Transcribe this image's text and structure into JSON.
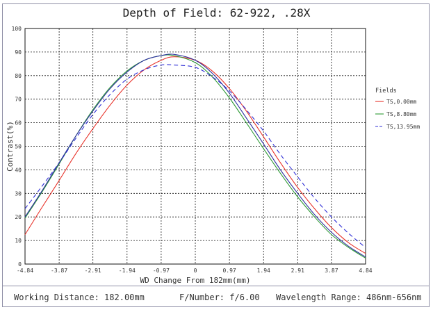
{
  "chart_data": {
    "type": "line",
    "title": "Depth of Field: 62-922, .28X",
    "xlabel": "WD Change From 182mm(mm)",
    "ylabel": "Contrast(%)",
    "xlim": [
      -4.84,
      4.84
    ],
    "ylim": [
      0,
      100
    ],
    "x_ticks": [
      "-4.84",
      "-3.87",
      "-2.91",
      "-1.94",
      "-0.97",
      "0",
      "0.97",
      "1.94",
      "2.91",
      "3.87",
      "4.84"
    ],
    "y_ticks": [
      "0",
      "10",
      "20",
      "30",
      "40",
      "50",
      "60",
      "70",
      "80",
      "90",
      "100"
    ],
    "grid": true,
    "legend_title": "Fields",
    "legend_position": "right",
    "series": [
      {
        "name": "TS,0.00mm",
        "color": "#e8332a",
        "dash": "solid",
        "x": [
          -4.84,
          -4.36,
          -3.87,
          -3.39,
          -2.91,
          -2.42,
          -1.94,
          -1.45,
          -0.97,
          -0.6,
          0,
          0.48,
          0.97,
          1.45,
          1.94,
          2.42,
          2.91,
          3.39,
          3.87,
          4.36,
          4.84
        ],
        "y": [
          12.5,
          24,
          35.5,
          47,
          57.5,
          67.5,
          76,
          82.5,
          86.5,
          88,
          86.5,
          82,
          74.5,
          65,
          54,
          43,
          32.5,
          23.5,
          15.5,
          9,
          4.5
        ]
      },
      {
        "name": "TS,8.80mm",
        "color": "#2e9a36",
        "dash": "solid",
        "x": [
          -4.84,
          -4.36,
          -3.87,
          -3.39,
          -2.91,
          -2.42,
          -1.94,
          -1.45,
          -0.97,
          -0.6,
          0,
          0.48,
          0.97,
          1.45,
          1.94,
          2.42,
          2.91,
          3.39,
          3.87,
          4.36,
          4.84
        ],
        "y": [
          19.5,
          30.5,
          42.5,
          54.5,
          65.5,
          75,
          82,
          86.5,
          88.5,
          88.5,
          85.5,
          79.5,
          70.5,
          60,
          49,
          38.5,
          28.5,
          20,
          12.5,
          7,
          2.5
        ]
      },
      {
        "name": "TS,13.95mm",
        "color": "#2f2fd6",
        "dash": "dashed",
        "x": [
          -4.84,
          -4.36,
          -3.87,
          -3.39,
          -2.91,
          -2.42,
          -1.94,
          -1.45,
          -0.97,
          -0.6,
          0,
          0.48,
          0.97,
          1.45,
          1.94,
          2.42,
          2.91,
          3.39,
          3.87,
          4.36,
          4.84
        ],
        "y": [
          23.5,
          33,
          43,
          53.5,
          63.5,
          72,
          78.5,
          82.5,
          84.5,
          84.5,
          83.5,
          79.5,
          73.5,
          65.5,
          56.5,
          46.5,
          37,
          28,
          20,
          13,
          7
        ]
      },
      {
        "name": "",
        "color": "#2a2f9e",
        "dash": "solid",
        "x": [
          -4.84,
          -4.36,
          -3.87,
          -3.39,
          -2.91,
          -2.42,
          -1.94,
          -1.45,
          -0.97,
          -0.6,
          0,
          0.48,
          0.97,
          1.45,
          1.94,
          2.42,
          2.91,
          3.39,
          3.87,
          4.36,
          4.84
        ],
        "y": [
          20,
          31,
          43,
          54.5,
          65,
          74.5,
          81.5,
          86.5,
          88.5,
          89,
          86.5,
          81,
          72.5,
          62,
          51,
          40,
          30,
          21,
          13.5,
          7.5,
          3
        ]
      }
    ]
  },
  "footer": {
    "working_distance": "Working Distance: 182.00mm",
    "f_number": "F/Number: f/6.00",
    "wavelength": "Wavelength Range: 486nm-656nm"
  }
}
